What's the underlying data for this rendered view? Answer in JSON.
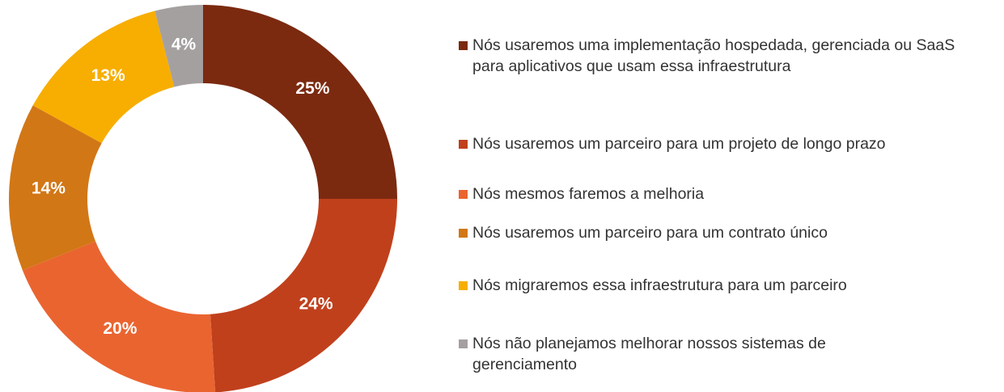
{
  "chart_data": {
    "type": "donut",
    "categories": [
      "Nós usaremos uma implementação hospedada, gerenciada ou SaaS para aplicativos que usam essa infraestrutura",
      "Nós usaremos um parceiro para um projeto de longo prazo",
      "Nós mesmos faremos a melhoria",
      "Nós usaremos um parceiro para um contrato único",
      "Nós migraremos essa infraestrutura para um parceiro",
      "Nós não planejamos melhorar nossos sistemas de gerenciamento"
    ],
    "values": [
      25,
      24,
      20,
      14,
      13,
      4
    ],
    "value_labels": [
      "25%",
      "24%",
      "20%",
      "14%",
      "13%",
      "4%"
    ],
    "colors": [
      "#7b2a10",
      "#c0401c",
      "#ea6430",
      "#d27716",
      "#f7ae00",
      "#a5a0a0"
    ]
  }
}
